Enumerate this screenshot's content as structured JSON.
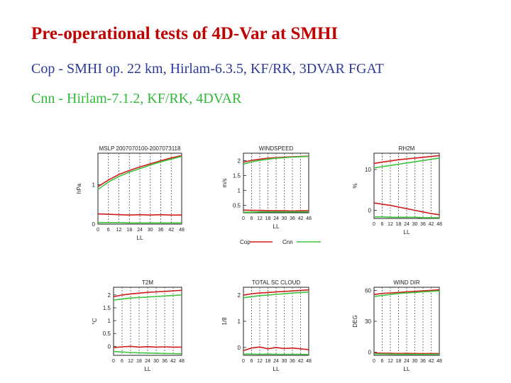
{
  "header": {
    "title": "Pre-operational tests of 4D-Var at SMHI",
    "cop_desc": "Cop - SMHI op. 22 km, Hirlam-6.3.5, KF/RK, 3DVAR FGAT",
    "cnn_desc": "Cnn - Hirlam-7.1.2, KF/RK, 4DVAR"
  },
  "colors": {
    "title": "#c00000",
    "cop": "#d01c1c",
    "cnn": "#3fc43f",
    "grid": "#555555"
  },
  "legend": {
    "cop": "Cop",
    "cnn": "Cnn"
  },
  "chart_data": [
    {
      "type": "line",
      "title": "MSLP 2007070100-2007073118",
      "xlabel": "LL",
      "ylabel": "hPa",
      "x": [
        0,
        6,
        12,
        18,
        24,
        30,
        36,
        42,
        48
      ],
      "xlim": [
        0,
        48
      ],
      "ylim": [
        0,
        1.8
      ],
      "xticks": [
        "0",
        "6",
        "12",
        "18",
        "24",
        "30",
        "36",
        "42",
        "48"
      ],
      "yticks": [
        {
          "v": 0,
          "t": "0"
        },
        {
          "v": 1,
          "t": "1"
        }
      ],
      "series": [
        {
          "name": "Cop",
          "values": [
            0.95,
            1.12,
            1.26,
            1.36,
            1.45,
            1.53,
            1.61,
            1.68,
            1.74
          ]
        },
        {
          "name": "Cop",
          "values": [
            0.26,
            0.25,
            0.24,
            0.23,
            0.24,
            0.23,
            0.24,
            0.23,
            0.23
          ]
        },
        {
          "name": "Cnn",
          "values": [
            0.88,
            1.07,
            1.21,
            1.32,
            1.41,
            1.5,
            1.58,
            1.65,
            1.72
          ]
        },
        {
          "name": "Cnn",
          "values": [
            0.04,
            0.04,
            0.04,
            0.03,
            0.03,
            0.03,
            0.03,
            0.03,
            0.03
          ]
        }
      ]
    },
    {
      "type": "line",
      "title": "WINDSPEED",
      "xlabel": "LL",
      "ylabel": "m/s",
      "x": [
        0,
        6,
        12,
        18,
        24,
        30,
        36,
        42,
        48
      ],
      "xlim": [
        0,
        48
      ],
      "ylim": [
        0.25,
        2.25
      ],
      "xticks": [
        "0",
        "6",
        "12",
        "18",
        "24",
        "30",
        "36",
        "42",
        "48"
      ],
      "yticks": [
        {
          "v": 0.5,
          "t": "0.5"
        },
        {
          "v": 1,
          "t": "1"
        },
        {
          "v": 1.5,
          "t": "1.5"
        },
        {
          "v": 2,
          "t": "2"
        }
      ],
      "series": [
        {
          "name": "Cop",
          "values": [
            1.95,
            2.01,
            2.05,
            2.08,
            2.1,
            2.12,
            2.13,
            2.14,
            2.15
          ]
        },
        {
          "name": "Cop",
          "values": [
            0.34,
            0.33,
            0.33,
            0.32,
            0.32,
            0.32,
            0.31,
            0.32,
            0.32
          ]
        },
        {
          "name": "Cnn",
          "values": [
            1.88,
            1.96,
            2.01,
            2.05,
            2.08,
            2.1,
            2.12,
            2.13,
            2.14
          ]
        },
        {
          "name": "Cnn",
          "values": [
            0.27,
            0.27,
            0.28,
            0.28,
            0.28,
            0.28,
            0.28,
            0.28,
            0.28
          ]
        }
      ]
    },
    {
      "type": "line",
      "title": "RH2M",
      "xlabel": "LL",
      "ylabel": "%",
      "x": [
        0,
        6,
        12,
        18,
        24,
        30,
        36,
        42,
        48
      ],
      "xlim": [
        0,
        48
      ],
      "ylim": [
        -2,
        14
      ],
      "xticks": [
        "0",
        "6",
        "12",
        "18",
        "24",
        "30",
        "36",
        "42",
        "48"
      ],
      "yticks": [
        {
          "v": 0,
          "t": "0"
        },
        {
          "v": 10,
          "t": "10"
        }
      ],
      "series": [
        {
          "name": "Cop",
          "values": [
            11.5,
            11.8,
            12.1,
            12.4,
            12.6,
            12.8,
            13.0,
            13.2,
            13.4
          ]
        },
        {
          "name": "Cop",
          "values": [
            1.8,
            1.5,
            1.2,
            0.8,
            0.4,
            0.0,
            -0.4,
            -0.8,
            -1.1
          ]
        },
        {
          "name": "Cnn",
          "values": [
            10.4,
            10.7,
            11.0,
            11.3,
            11.6,
            11.9,
            12.2,
            12.5,
            12.8
          ]
        },
        {
          "name": "Cnn",
          "values": [
            -1.6,
            -1.6,
            -1.7,
            -1.7,
            -1.7,
            -1.7,
            -1.8,
            -1.8,
            -1.8
          ]
        }
      ]
    },
    {
      "type": "line",
      "title": "T2M",
      "xlabel": "LL",
      "ylabel": "°C",
      "x": [
        0,
        6,
        12,
        18,
        24,
        30,
        36,
        42,
        48
      ],
      "xlim": [
        0,
        48
      ],
      "ylim": [
        -0.35,
        2.3
      ],
      "xticks": [
        "0",
        "6",
        "12",
        "18",
        "24",
        "30",
        "36",
        "42",
        "48"
      ],
      "yticks": [
        {
          "v": 0,
          "t": "0"
        },
        {
          "v": 0.5,
          "t": "0.5"
        },
        {
          "v": 1,
          "t": "1"
        },
        {
          "v": 1.5,
          "t": "1.5"
        },
        {
          "v": 2,
          "t": "2"
        }
      ],
      "series": [
        {
          "name": "Cop",
          "values": [
            1.93,
            2.0,
            2.04,
            2.07,
            2.1,
            2.12,
            2.14,
            2.16,
            2.18
          ]
        },
        {
          "name": "Cop",
          "values": [
            -0.05,
            -0.02,
            0.0,
            -0.03,
            -0.01,
            -0.03,
            -0.02,
            -0.03,
            -0.03
          ]
        },
        {
          "name": "Cnn",
          "values": [
            1.8,
            1.84,
            1.88,
            1.9,
            1.92,
            1.94,
            1.96,
            1.98,
            2.0
          ]
        },
        {
          "name": "Cnn",
          "values": [
            -0.2,
            -0.22,
            -0.24,
            -0.25,
            -0.26,
            -0.27,
            -0.28,
            -0.28,
            -0.29
          ]
        }
      ]
    },
    {
      "type": "line",
      "title": "TOTAL SC CLOUD",
      "xlabel": "LL",
      "ylabel": "1/8",
      "x": [
        0,
        6,
        12,
        18,
        24,
        30,
        36,
        42,
        48
      ],
      "xlim": [
        0,
        48
      ],
      "ylim": [
        -0.3,
        2.3
      ],
      "xticks": [
        "0",
        "6",
        "12",
        "18",
        "24",
        "30",
        "36",
        "42",
        "48"
      ],
      "yticks": [
        {
          "v": 0,
          "t": "0"
        },
        {
          "v": 1,
          "t": "1"
        },
        {
          "v": 2,
          "t": "2"
        }
      ],
      "series": [
        {
          "name": "Cop",
          "values": [
            2.0,
            2.05,
            2.08,
            2.1,
            2.12,
            2.14,
            2.16,
            2.18,
            2.2
          ]
        },
        {
          "name": "Cop",
          "values": [
            -0.12,
            -0.02,
            0.02,
            -0.05,
            0.0,
            -0.04,
            -0.02,
            -0.05,
            -0.08
          ]
        },
        {
          "name": "Cnn",
          "values": [
            1.9,
            1.94,
            1.98,
            2.0,
            2.03,
            2.05,
            2.08,
            2.1,
            2.12
          ]
        },
        {
          "name": "Cnn",
          "values": [
            -0.25,
            -0.25,
            -0.26,
            -0.25,
            -0.26,
            -0.26,
            -0.26,
            -0.26,
            -0.27
          ]
        }
      ]
    },
    {
      "type": "line",
      "title": "WIND DIR",
      "xlabel": "LL",
      "ylabel": "DEG",
      "x": [
        0,
        6,
        12,
        18,
        24,
        30,
        36,
        42,
        48
      ],
      "xlim": [
        0,
        48
      ],
      "ylim": [
        -3,
        63
      ],
      "xticks": [
        "0",
        "6",
        "12",
        "18",
        "24",
        "30",
        "36",
        "42",
        "48"
      ],
      "yticks": [
        {
          "v": 0,
          "t": "0"
        },
        {
          "v": 30,
          "t": "30"
        },
        {
          "v": 60,
          "t": "60"
        }
      ],
      "series": [
        {
          "name": "Cop",
          "values": [
            56,
            57,
            57.5,
            58,
            58.5,
            59,
            59.5,
            60,
            60.5
          ]
        },
        {
          "name": "Cop",
          "values": [
            -0.5,
            -1,
            -1,
            -1.2,
            -1.1,
            -1.2,
            -1.3,
            -1.2,
            -1.3
          ]
        },
        {
          "name": "Cnn",
          "values": [
            54,
            55,
            56,
            57,
            57.5,
            58,
            58.5,
            59,
            59.5
          ]
        },
        {
          "name": "Cnn",
          "values": [
            -1.5,
            -1.7,
            -1.8,
            -1.9,
            -1.9,
            -2,
            -2,
            -2,
            -2
          ]
        }
      ]
    }
  ]
}
